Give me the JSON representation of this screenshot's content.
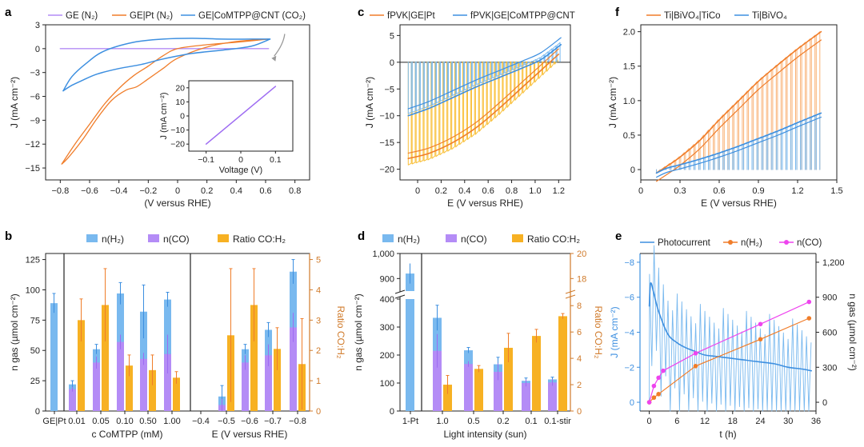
{
  "colors": {
    "blue": "#3d8fe0",
    "blue_light": "#79b9ef",
    "orange": "#f07d2a",
    "purple": "#9e6cf2",
    "purple_light": "#b48cf6",
    "yellow": "#f7b123",
    "magenta": "#ee44ee",
    "ratio_axis": "#d07a2a"
  },
  "panels": [
    {
      "id": "a",
      "letter": "a"
    },
    {
      "id": "c",
      "letter": "c"
    },
    {
      "id": "f",
      "letter": "f"
    },
    {
      "id": "b",
      "letter": "b"
    },
    {
      "id": "d",
      "letter": "d"
    },
    {
      "id": "e",
      "letter": "e"
    }
  ],
  "chart_data": [
    {
      "id": "a",
      "type": "line",
      "legend": [
        "GE (N2)",
        "GE|Pt (N2)",
        "GE|CoMTPP@CNT (CO2)"
      ],
      "xlabel": "E (V versus RHE)",
      "ylabel": "J (mA cm-2)",
      "xlim": [
        -0.9,
        0.9
      ],
      "ylim": [
        -16.5,
        3
      ],
      "xticks": [
        "-0.8",
        "-0.6",
        "-0.4",
        "-0.2",
        "0",
        "0.2",
        "0.4",
        "0.6",
        "0.8"
      ],
      "yticks": [
        "3",
        "0",
        "-3",
        "-6",
        "-9",
        "-12",
        "-15"
      ],
      "series": [
        {
          "name": "GE (N2)",
          "x": [
            -0.8,
            0.62
          ],
          "y": [
            0,
            0
          ]
        },
        {
          "name": "GE|Pt (N2) forward",
          "x": [
            0.62,
            0.4,
            0.2,
            0.0,
            -0.1,
            -0.2,
            -0.28,
            -0.35,
            -0.45,
            -0.55,
            -0.65,
            -0.75,
            -0.79
          ],
          "y": [
            1.2,
            0.9,
            0.2,
            -1.2,
            -2.5,
            -3.8,
            -4.8,
            -5.2,
            -6.5,
            -8.8,
            -11.5,
            -13.8,
            -14.5
          ]
        },
        {
          "name": "GE|Pt (N2) reverse",
          "x": [
            -0.79,
            -0.7,
            -0.6,
            -0.5,
            -0.4,
            -0.3,
            -0.2,
            -0.1,
            0.0,
            0.2,
            0.4,
            0.62
          ],
          "y": [
            -14.5,
            -12.0,
            -9.5,
            -7.0,
            -5.0,
            -3.4,
            -2.2,
            -0.9,
            0.0,
            0.5,
            0.8,
            1.2
          ]
        },
        {
          "name": "GE|CoMTPP@CNT (CO2) forward",
          "x": [
            0.63,
            0.5,
            0.3,
            0.1,
            -0.1,
            -0.25,
            -0.4,
            -0.55,
            -0.65,
            -0.72,
            -0.78
          ],
          "y": [
            1.2,
            0.3,
            -0.2,
            -0.6,
            -1.3,
            -2.0,
            -2.5,
            -3.2,
            -4.0,
            -4.6,
            -5.3
          ]
        },
        {
          "name": "GE|CoMTPP@CNT (CO2) reverse",
          "x": [
            -0.78,
            -0.72,
            -0.62,
            -0.5,
            -0.3,
            -0.1,
            0.1,
            0.3,
            0.5,
            0.63
          ],
          "y": [
            -5.3,
            -3.5,
            -1.8,
            -0.3,
            0.8,
            1.2,
            1.3,
            1.2,
            1.2,
            1.2
          ]
        }
      ],
      "inset": {
        "xlabel": "Voltage (V)",
        "ylabel": "J (mA cm-2)",
        "xticks": [
          "-0.1",
          "0",
          "0.1"
        ],
        "yticks": [
          "20",
          "10",
          "0",
          "-10",
          "-20"
        ],
        "x": [
          -0.1,
          0.1
        ],
        "y": [
          -20,
          21
        ]
      }
    },
    {
      "id": "c",
      "type": "line",
      "legend": [
        "fPVK|GE|Pt",
        "fPVK|GE|CoMTPP@CNT"
      ],
      "xlabel": "E (V versus RHE)",
      "ylabel": "J (mA cm-2)",
      "xlim": [
        -0.15,
        1.3
      ],
      "ylim": [
        -22,
        7
      ],
      "xticks": [
        "0",
        "0.2",
        "0.4",
        "0.6",
        "0.8",
        "1.0",
        "1.2"
      ],
      "yticks": [
        "5",
        "0",
        "-5",
        "-10",
        "-15",
        "-20"
      ],
      "series": [
        {
          "name": "fPVK|GE|Pt",
          "x": [
            -0.08,
            0.1,
            0.3,
            0.5,
            0.7,
            0.9,
            1.05,
            1.2
          ],
          "y": [
            -18.0,
            -17.0,
            -15.0,
            -12.2,
            -8.5,
            -4.5,
            -1.5,
            1.5
          ]
        },
        {
          "name": "fPVK|GE|CoMTPP@CNT",
          "x": [
            -0.08,
            0.1,
            0.3,
            0.5,
            0.7,
            0.9,
            1.05,
            1.22
          ],
          "y": [
            -10.0,
            -8.6,
            -6.6,
            -4.6,
            -2.8,
            -1.0,
            0.5,
            3.3
          ]
        }
      ]
    },
    {
      "id": "f",
      "type": "line",
      "legend": [
        "Ti|BiVO4|TiCo",
        "Ti|BiVO4"
      ],
      "xlabel": "E (V versus RHE)",
      "ylabel": "J (mA cm-2)",
      "xlim": [
        0,
        1.5
      ],
      "ylim": [
        -0.15,
        2.1
      ],
      "xticks": [
        "0",
        "0.3",
        "0.6",
        "0.9",
        "1.2",
        "1.5"
      ],
      "yticks": [
        "2.0",
        "1.5",
        "1.0",
        "0.5",
        "0"
      ],
      "series": [
        {
          "name": "Ti|BiVO4|TiCo",
          "x": [
            0.12,
            0.2,
            0.3,
            0.45,
            0.6,
            0.75,
            0.9,
            1.05,
            1.2,
            1.38
          ],
          "y": [
            -0.05,
            0.05,
            0.18,
            0.42,
            0.72,
            1.0,
            1.28,
            1.52,
            1.75,
            2.0
          ]
        },
        {
          "name": "Ti|BiVO4",
          "x": [
            0.12,
            0.2,
            0.3,
            0.45,
            0.6,
            0.75,
            0.9,
            1.05,
            1.2,
            1.38
          ],
          "y": [
            -0.05,
            0.02,
            0.07,
            0.15,
            0.24,
            0.34,
            0.45,
            0.56,
            0.68,
            0.82
          ]
        }
      ]
    },
    {
      "id": "b",
      "type": "bar",
      "legend": [
        "n(H2)",
        "n(CO)",
        "Ratio CO:H2"
      ],
      "ylabel": "n gas (µmol cm-2)",
      "ylabel_right": "Ratio CO:H2",
      "ylim": [
        0,
        130
      ],
      "ylim_right": [
        0,
        5.2
      ],
      "yticks": [
        "0",
        "25",
        "50",
        "75",
        "100",
        "125"
      ],
      "yticks_right": [
        "0",
        "1",
        "2",
        "3",
        "4",
        "5"
      ],
      "xlabel_mid": "c CoMTPP (mM)",
      "xlabel_right": "E (V versus RHE)",
      "categories": [
        "GE|Pt",
        "0.01",
        "0.05",
        "0.10",
        "0.50",
        "1.00",
        "-0.4",
        "-0.5",
        "-0.6",
        "-0.7",
        "-0.8"
      ],
      "series": [
        {
          "name": "n(H2)",
          "values": [
            89,
            22,
            51,
            97,
            82,
            92,
            0,
            12,
            51,
            67,
            115
          ],
          "errors": [
            8,
            3,
            4,
            9,
            22,
            6,
            0,
            9,
            4,
            6,
            10
          ]
        },
        {
          "name": "n(CO)",
          "values": [
            0,
            18,
            40,
            57,
            43,
            47,
            0,
            5,
            40,
            46,
            69
          ],
          "errors": [
            0,
            2,
            5,
            6,
            5,
            16,
            0,
            5,
            6,
            9,
            12
          ]
        },
        {
          "name": "Ratio CO:H2",
          "values": [
            0,
            3.0,
            3.5,
            1.5,
            1.35,
            1.1,
            0,
            2.5,
            3.5,
            2.05,
            1.55
          ],
          "errors": [
            0,
            0.7,
            1.2,
            0.35,
            0.5,
            0.2,
            0,
            2.2,
            1.2,
            0.7,
            1.5
          ]
        }
      ]
    },
    {
      "id": "d",
      "type": "bar",
      "legend": [
        "n(H2)",
        "n(CO)",
        "Ratio CO:H2"
      ],
      "ylabel": "n gas (µmol cm-2)",
      "ylabel_right": "Ratio CO:H2",
      "xlabel": "Light intensity (sun)",
      "yticks_low": [
        "0",
        "100",
        "200",
        "300",
        "400"
      ],
      "yticks_high": [
        "900",
        "1,000"
      ],
      "yticks_right": [
        "0",
        "2",
        "4",
        "6",
        "8",
        "18",
        "20"
      ],
      "categories": [
        "1-Pt",
        "1.0",
        "0.5",
        "0.2",
        "0.1",
        "0.1-stir"
      ],
      "series": [
        {
          "name": "n(H2)",
          "values": [
            920,
            333,
            217,
            167,
            108,
            113
          ],
          "errors": [
            40,
            45,
            10,
            25,
            10,
            8
          ]
        },
        {
          "name": "n(CO)",
          "values": [
            0,
            215,
            168,
            140,
            100,
            102
          ],
          "errors": [
            0,
            60,
            10,
            30,
            12,
            12
          ]
        },
        {
          "name": "Ratio CO:H2",
          "values": [
            0,
            2.0,
            3.2,
            4.8,
            5.7,
            7.2
          ],
          "errors": [
            0,
            0.7,
            0.25,
            1.1,
            0.5,
            0.2
          ]
        }
      ]
    },
    {
      "id": "e",
      "type": "line",
      "legend": [
        "Photocurrent",
        "n(H2)",
        "n(CO)"
      ],
      "xlabel": "t (h)",
      "ylabel": "J (mA cm-2)",
      "ylabel_right": "n gas (µmol cm-2)",
      "xlim": [
        -2,
        36
      ],
      "ylim": [
        0.5,
        -8.5
      ],
      "xticks": [
        "0",
        "6",
        "12",
        "18",
        "24",
        "30",
        "36"
      ],
      "yticks": [
        "-8",
        "-6",
        "-4",
        "-2",
        "0"
      ],
      "yticks_right": [
        "1,200",
        "900",
        "600",
        "300",
        "0"
      ],
      "series": [
        {
          "name": "Photocurrent",
          "x": [
            0,
            0.3,
            1,
            2,
            4,
            6,
            8,
            10,
            12,
            15,
            18,
            21,
            24,
            27,
            30,
            33,
            35
          ],
          "y": [
            -5.5,
            -6.8,
            -6.2,
            -5.2,
            -3.9,
            -3.4,
            -3.1,
            -2.9,
            -2.7,
            -2.6,
            -2.5,
            -2.4,
            -2.3,
            -2.2,
            -2.0,
            -1.9,
            -1.8
          ]
        },
        {
          "name": "n(H2)",
          "x": [
            0,
            1,
            2,
            10,
            24,
            34.5
          ],
          "y": [
            0,
            40,
            70,
            310,
            540,
            720
          ]
        },
        {
          "name": "n(CO)",
          "x": [
            0,
            1,
            2,
            3,
            10,
            24,
            34.5
          ],
          "y": [
            0,
            140,
            210,
            270,
            420,
            670,
            860
          ]
        }
      ]
    }
  ]
}
